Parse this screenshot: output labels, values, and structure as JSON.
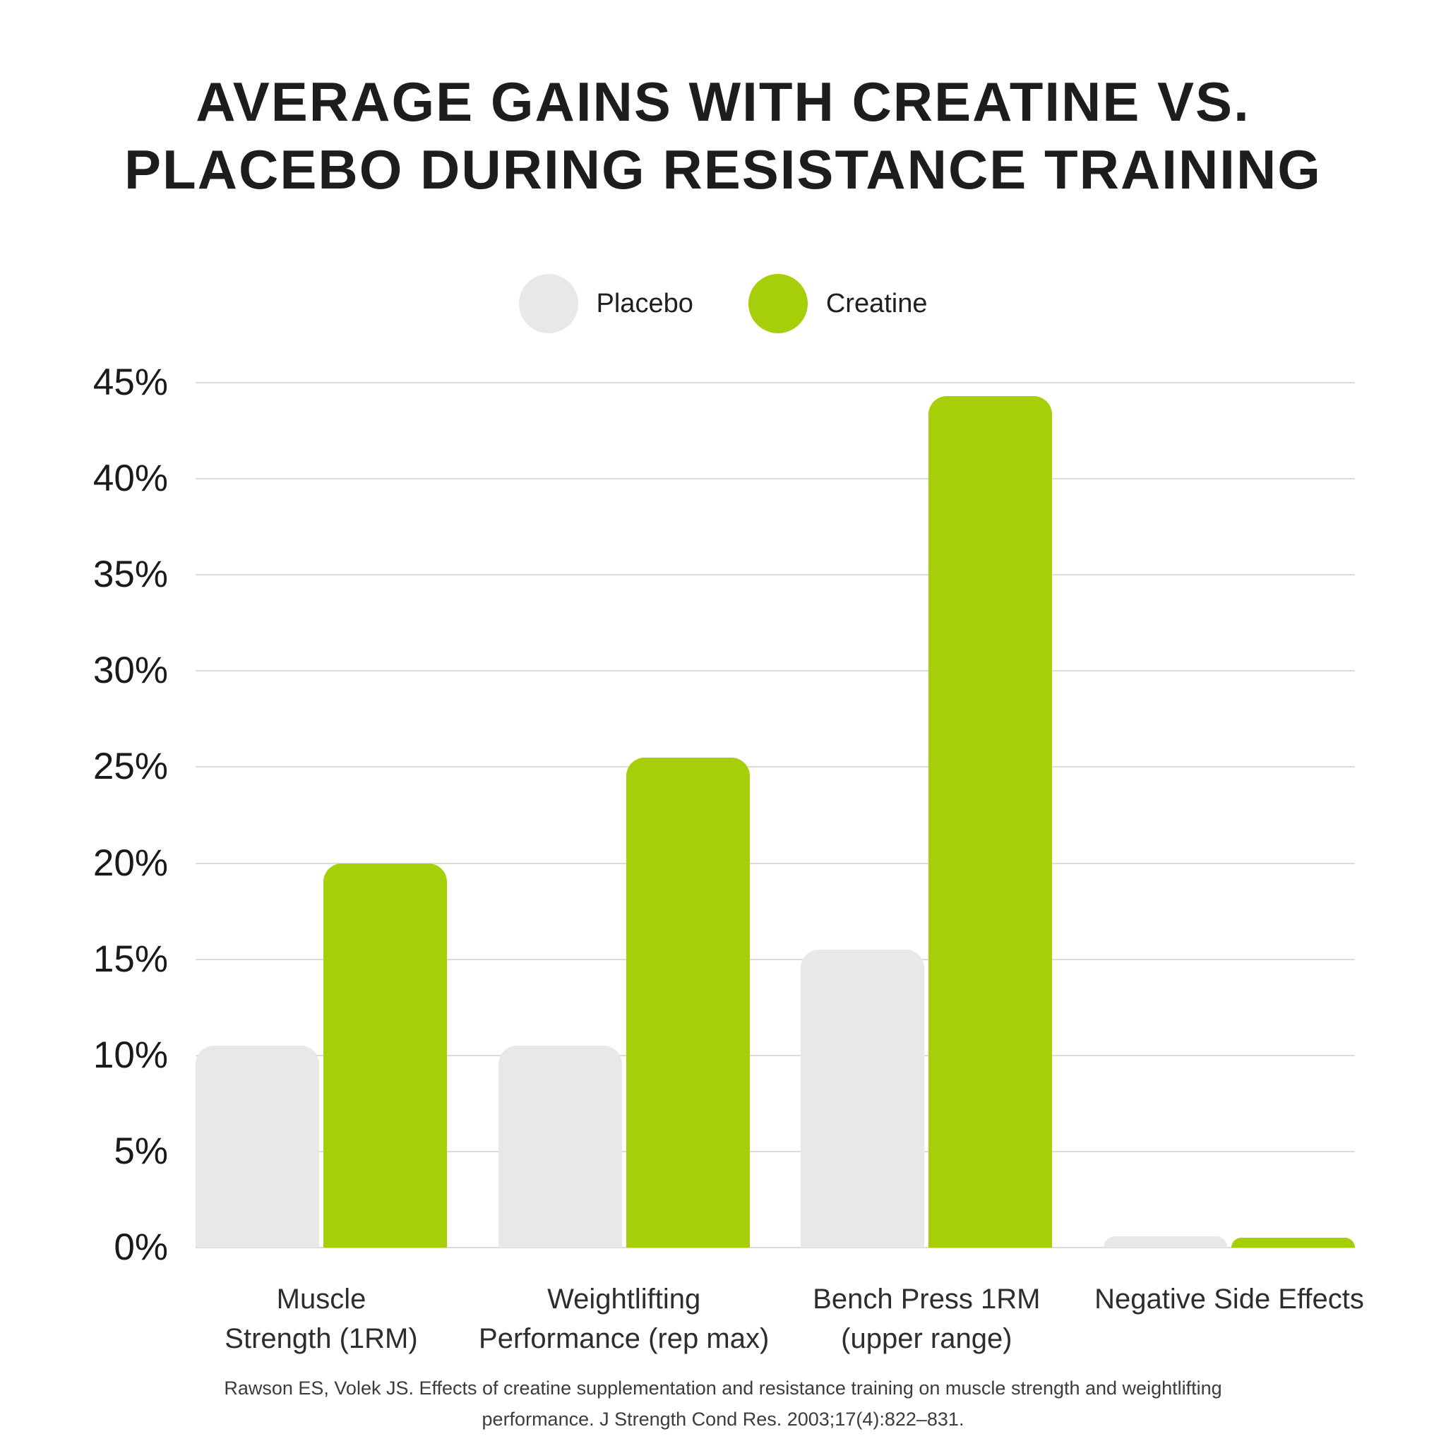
{
  "title": {
    "line1": "AVERAGE GAINS WITH CREATINE VS.",
    "line2": "PLACEBO DURING RESISTANCE TRAINING"
  },
  "legend": {
    "items": [
      {
        "label": "Placebo",
        "color": "#e8e8e8"
      },
      {
        "label": "Creatine",
        "color": "#a6cf0a"
      }
    ]
  },
  "chart_data": {
    "type": "bar",
    "title": "Average gains with creatine vs. placebo during resistance training",
    "categories": [
      "Muscle Strength (1RM)",
      "Weightlifting Performance (rep max)",
      "Bench Press 1RM (upper range)",
      "Negative Side Effects"
    ],
    "category_lines": [
      [
        "Muscle",
        "Strength (1RM)"
      ],
      [
        "Weightlifting",
        "Performance (rep max)"
      ],
      [
        "Bench Press 1RM",
        "(upper range)"
      ],
      [
        "Negative Side Effects"
      ]
    ],
    "series": [
      {
        "name": "Placebo",
        "color": "#e8e8e8",
        "values": [
          10.5,
          10.5,
          15.5,
          0.6
        ]
      },
      {
        "name": "Creatine",
        "color": "#a6cf0a",
        "values": [
          20,
          25.5,
          44.3,
          0.5
        ]
      }
    ],
    "xlabel": "",
    "ylabel": "",
    "ylim": [
      0,
      45
    ],
    "grid": true,
    "legend_position": "top",
    "y_axis": {
      "ticks": [
        {
          "value": 0,
          "label": "0%"
        },
        {
          "value": 5,
          "label": "5%"
        },
        {
          "value": 10,
          "label": "10%"
        },
        {
          "value": 15,
          "label": "15%"
        },
        {
          "value": 20,
          "label": "20%"
        },
        {
          "value": 25,
          "label": "25%"
        },
        {
          "value": 30,
          "label": "30%"
        },
        {
          "value": 35,
          "label": "35%"
        },
        {
          "value": 40,
          "label": "40%"
        },
        {
          "value": 45,
          "label": "45%"
        }
      ]
    }
  },
  "footer": {
    "citation_line1": "Rawson ES, Volek JS. Effects of creatine supplementation and resistance training on muscle strength and weightlifting",
    "citation_line2": "performance. J Strength Cond Res. 2003;17(4):822–831."
  }
}
